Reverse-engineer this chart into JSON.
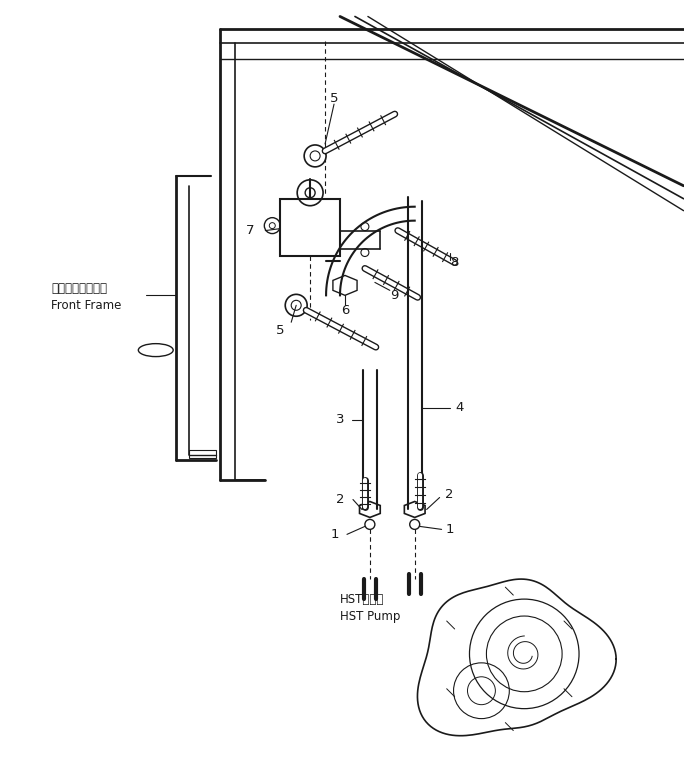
{
  "bg_color": "#ffffff",
  "line_color": "#1a1a1a",
  "fig_width": 6.85,
  "fig_height": 7.57,
  "dpi": 100,
  "labels": {
    "front_frame_jp": "フロントフレーム",
    "front_frame_en": "Front Frame",
    "hst_pump_jp": "HSTボンプ",
    "hst_pump_en": "HST Pump"
  }
}
